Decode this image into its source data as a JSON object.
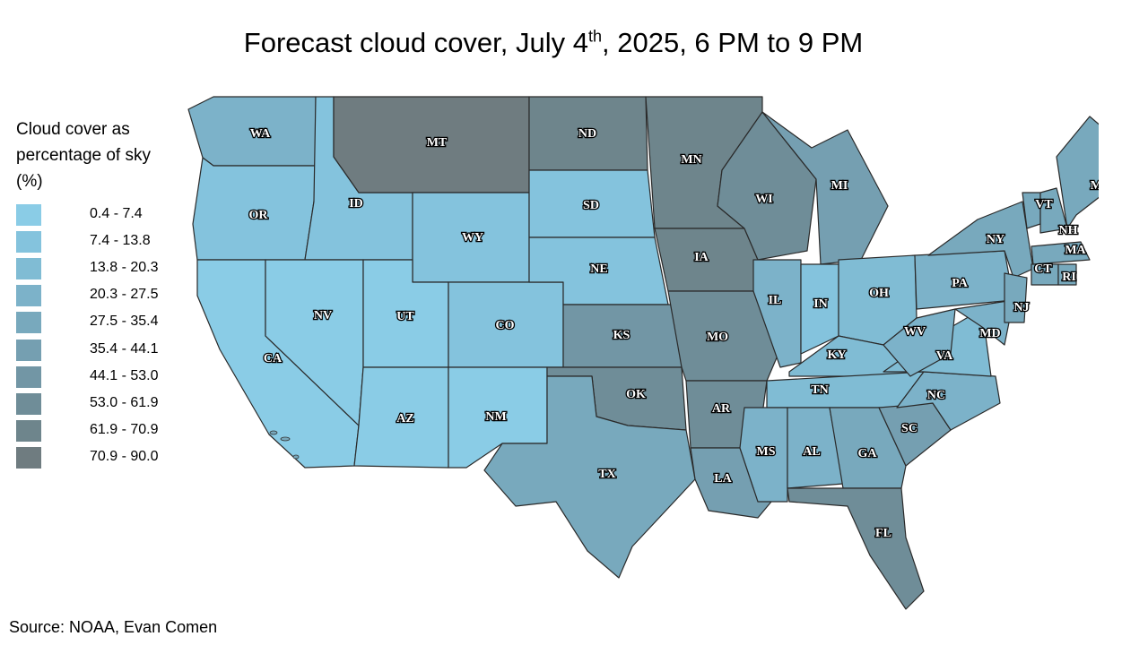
{
  "title": {
    "text": "Forecast cloud cover, July 4",
    "sup": "th",
    "rest": ", 2025, 6 PM to 9 PM"
  },
  "legend": {
    "title": "Cloud cover as percentage of sky (%)",
    "items": [
      {
        "label": "0.4 - 7.4",
        "color": "#8acce6"
      },
      {
        "label": "7.4 - 13.8",
        "color": "#84c3dd"
      },
      {
        "label": "13.8 - 20.3",
        "color": "#80bcd4"
      },
      {
        "label": "20.3 - 27.5",
        "color": "#7cb2c9"
      },
      {
        "label": "27.5 - 35.4",
        "color": "#78a9bd"
      },
      {
        "label": "35.4 - 44.1",
        "color": "#759fb1"
      },
      {
        "label": "44.1 - 53.0",
        "color": "#7296a5"
      },
      {
        "label": "53.0 - 61.9",
        "color": "#6f8d98"
      },
      {
        "label": "61.9 - 70.9",
        "color": "#6e858c"
      },
      {
        "label": "70.9 - 90.0",
        "color": "#6f7c80"
      }
    ]
  },
  "states": [
    {
      "abbr": "WA",
      "range": "20.3 - 27.5"
    },
    {
      "abbr": "OR",
      "range": "7.4 - 13.8"
    },
    {
      "abbr": "CA",
      "range": "0.4 - 7.4"
    },
    {
      "abbr": "ID",
      "range": "7.4 - 13.8"
    },
    {
      "abbr": "NV",
      "range": "0.4 - 7.4"
    },
    {
      "abbr": "MT",
      "range": "70.9 - 90.0"
    },
    {
      "abbr": "WY",
      "range": "7.4 - 13.8"
    },
    {
      "abbr": "UT",
      "range": "0.4 - 7.4"
    },
    {
      "abbr": "AZ",
      "range": "0.4 - 7.4"
    },
    {
      "abbr": "CO",
      "range": "7.4 - 13.8"
    },
    {
      "abbr": "NM",
      "range": "0.4 - 7.4"
    },
    {
      "abbr": "ND",
      "range": "61.9 - 70.9"
    },
    {
      "abbr": "SD",
      "range": "7.4 - 13.8"
    },
    {
      "abbr": "NE",
      "range": "7.4 - 13.8"
    },
    {
      "abbr": "KS",
      "range": "44.1 - 53.0"
    },
    {
      "abbr": "OK",
      "range": "53.0 - 61.9"
    },
    {
      "abbr": "TX",
      "range": "27.5 - 35.4"
    },
    {
      "abbr": "MN",
      "range": "61.9 - 70.9"
    },
    {
      "abbr": "IA",
      "range": "61.9 - 70.9"
    },
    {
      "abbr": "MO",
      "range": "53.0 - 61.9"
    },
    {
      "abbr": "AR",
      "range": "53.0 - 61.9"
    },
    {
      "abbr": "LA",
      "range": "35.4 - 44.1"
    },
    {
      "abbr": "WI",
      "range": "53.0 - 61.9"
    },
    {
      "abbr": "IL",
      "range": "20.3 - 27.5"
    },
    {
      "abbr": "MI",
      "range": "35.4 - 44.1"
    },
    {
      "abbr": "IN",
      "range": "7.4 - 13.8"
    },
    {
      "abbr": "OH",
      "range": "13.8 - 20.3"
    },
    {
      "abbr": "KY",
      "range": "13.8 - 20.3"
    },
    {
      "abbr": "TN",
      "range": "13.8 - 20.3"
    },
    {
      "abbr": "MS",
      "range": "20.3 - 27.5"
    },
    {
      "abbr": "AL",
      "range": "20.3 - 27.5"
    },
    {
      "abbr": "GA",
      "range": "27.5 - 35.4"
    },
    {
      "abbr": "FL",
      "range": "53.0 - 61.9"
    },
    {
      "abbr": "SC",
      "range": "35.4 - 44.1"
    },
    {
      "abbr": "NC",
      "range": "20.3 - 27.5"
    },
    {
      "abbr": "VA",
      "range": "13.8 - 20.3"
    },
    {
      "abbr": "WV",
      "range": "20.3 - 27.5"
    },
    {
      "abbr": "PA",
      "range": "20.3 - 27.5"
    },
    {
      "abbr": "NY",
      "range": "27.5 - 35.4"
    },
    {
      "abbr": "MD",
      "range": "20.3 - 27.5"
    },
    {
      "abbr": "NJ",
      "range": "27.5 - 35.4"
    },
    {
      "abbr": "VT",
      "range": "27.5 - 35.4"
    },
    {
      "abbr": "NH",
      "range": "27.5 - 35.4"
    },
    {
      "abbr": "ME",
      "range": "27.5 - 35.4"
    },
    {
      "abbr": "MA",
      "range": "27.5 - 35.4"
    },
    {
      "abbr": "CT",
      "range": "27.5 - 35.4"
    },
    {
      "abbr": "RI",
      "range": "27.5 - 35.4"
    }
  ],
  "source": "Source: NOAA, Evan Comen"
}
